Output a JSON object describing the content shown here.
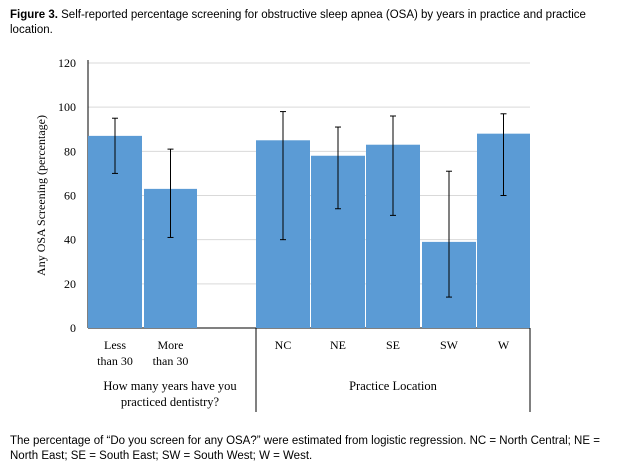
{
  "figure": {
    "label": "Figure 3.",
    "title": "Self-reported percentage screening for obstructive sleep apnea (OSA) by years in practice and practice location.",
    "note": "The percentage of “Do you screen for any OSA?” were estimated from logistic regression. NC = North Central; NE = North East; SE = South East; SW = South West; W = West."
  },
  "chart_data": {
    "type": "bar",
    "ylabel": "Any OSA Screening (percentage)",
    "ylim": [
      0,
      120
    ],
    "yticks": [
      "0",
      "20",
      "40",
      "60",
      "80",
      "100",
      "120"
    ],
    "grid": true,
    "bar_color": "#5b9bd5",
    "groups": [
      {
        "label_lines": [
          "How many years have you",
          "practiced dentistry?"
        ],
        "categories": [
          {
            "lines": [
              "Less",
              "than 30"
            ],
            "value": 87,
            "err_low": 70,
            "err_high": 95
          },
          {
            "lines": [
              "More",
              "than 30"
            ],
            "value": 63,
            "err_low": 41,
            "err_high": 81
          }
        ]
      },
      {
        "label_lines": [
          "Practice Location"
        ],
        "categories": [
          {
            "lines": [
              "NC"
            ],
            "value": 85,
            "err_low": 40,
            "err_high": 98
          },
          {
            "lines": [
              "NE"
            ],
            "value": 78,
            "err_low": 54,
            "err_high": 91
          },
          {
            "lines": [
              "SE"
            ],
            "value": 83,
            "err_low": 51,
            "err_high": 96
          },
          {
            "lines": [
              "SW"
            ],
            "value": 39,
            "err_low": 14,
            "err_high": 71
          },
          {
            "lines": [
              "W"
            ],
            "value": 88,
            "err_low": 60,
            "err_high": 97
          }
        ]
      }
    ]
  }
}
